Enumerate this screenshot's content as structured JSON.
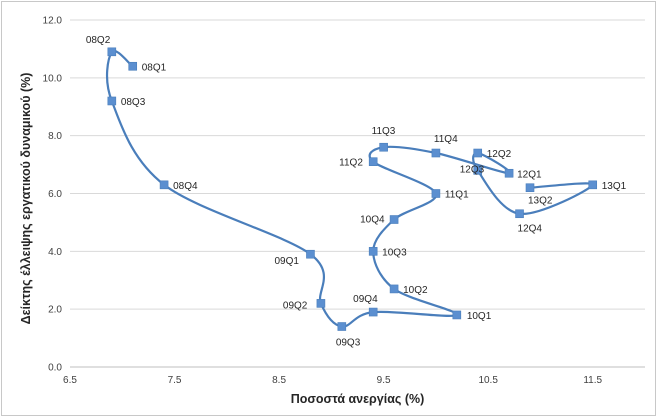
{
  "chart_data": {
    "type": "scatter",
    "connected": true,
    "smooth": true,
    "xlabel": "Ποσοστά ανεργίας (%)",
    "ylabel": "Δείκτης έλλειψης εργατικού δυναμικού (%)",
    "xlim": [
      6.5,
      12.0
    ],
    "ylim": [
      0.0,
      12.0
    ],
    "x_ticks": [
      "6.5",
      "7.5",
      "8.5",
      "9.5",
      "10.5",
      "11.5"
    ],
    "y_ticks": [
      "0.0",
      "2.0",
      "4.0",
      "6.0",
      "8.0",
      "10.0",
      "12.0"
    ],
    "grid": "horizontal",
    "series_color": "#4a7ebb",
    "marker_color": "#5b8fd0",
    "points": [
      {
        "label": "08Q1",
        "x": 7.1,
        "y": 10.4
      },
      {
        "label": "08Q2",
        "x": 6.9,
        "y": 10.9
      },
      {
        "label": "08Q3",
        "x": 6.9,
        "y": 9.2
      },
      {
        "label": "08Q4",
        "x": 7.4,
        "y": 6.3
      },
      {
        "label": "09Q1",
        "x": 8.8,
        "y": 3.9
      },
      {
        "label": "09Q2",
        "x": 8.9,
        "y": 2.2
      },
      {
        "label": "09Q3",
        "x": 9.1,
        "y": 1.4
      },
      {
        "label": "09Q4",
        "x": 9.4,
        "y": 1.9
      },
      {
        "label": "10Q1",
        "x": 10.2,
        "y": 1.8
      },
      {
        "label": "10Q2",
        "x": 9.6,
        "y": 2.7
      },
      {
        "label": "10Q3",
        "x": 9.4,
        "y": 4.0
      },
      {
        "label": "10Q4",
        "x": 9.6,
        "y": 5.1
      },
      {
        "label": "11Q1",
        "x": 10.0,
        "y": 6.0
      },
      {
        "label": "11Q2",
        "x": 9.4,
        "y": 7.1
      },
      {
        "label": "11Q3",
        "x": 9.5,
        "y": 7.6
      },
      {
        "label": "11Q4",
        "x": 10.0,
        "y": 7.4
      },
      {
        "label": "12Q1",
        "x": 10.7,
        "y": 6.7
      },
      {
        "label": "12Q2",
        "x": 10.4,
        "y": 7.4
      },
      {
        "label": "12Q3",
        "x": 10.4,
        "y": 6.8
      },
      {
        "label": "12Q4",
        "x": 10.8,
        "y": 5.3
      },
      {
        "label": "13Q1",
        "x": 11.5,
        "y": 6.3
      },
      {
        "label": "13Q2",
        "x": 10.9,
        "y": 6.2
      }
    ]
  }
}
